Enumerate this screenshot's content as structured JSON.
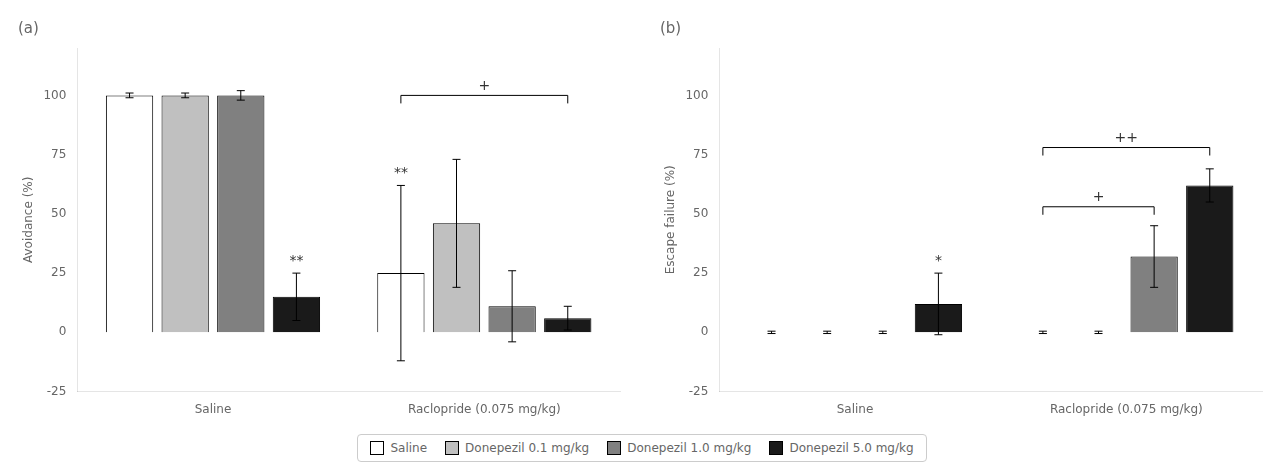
{
  "chart_data": [
    {
      "type": "bar",
      "title": "(a)",
      "y_label": "Avoidance (%)",
      "categories": [
        "Saline",
        "Raclopride (0.075 mg/kg)"
      ],
      "series": [
        {
          "name": "Saline",
          "color": "#ffffff",
          "values": [
            100,
            25
          ],
          "errors": [
            1,
            37
          ]
        },
        {
          "name": "Donepezil 0.1 mg/kg",
          "color": "#c0c0c0",
          "values": [
            100,
            46
          ],
          "errors": [
            1,
            27
          ]
        },
        {
          "name": "Donepezil 1.0 mg/kg",
          "color": "#808080",
          "values": [
            100,
            11
          ],
          "errors": [
            2,
            15
          ]
        },
        {
          "name": "Donepezil 5.0 mg/kg",
          "color": "#1a1a1a",
          "values": [
            15,
            6
          ],
          "errors": [
            10,
            5
          ]
        }
      ],
      "annotations": [
        {
          "text": "**",
          "category": "Saline",
          "series": "Donepezil 5.0 mg/kg",
          "y": 27
        },
        {
          "text": "**",
          "category": "Raclopride (0.075 mg/kg)",
          "series": "Saline",
          "y": 64
        },
        {
          "text": "+",
          "category": "Raclopride (0.075 mg/kg)",
          "from_series": "Saline",
          "to_series": "Donepezil 5.0 mg/kg",
          "y": 100
        }
      ],
      "ylim": [
        -25,
        120
      ],
      "yticks": [
        -25,
        0,
        25,
        50,
        75,
        100
      ],
      "grid": false,
      "legend": "bottom"
    },
    {
      "type": "bar",
      "title": "(b)",
      "y_label": "Escape failure (%)",
      "categories": [
        "Saline",
        "Raclopride (0.075 mg/kg)"
      ],
      "series": [
        {
          "name": "Saline",
          "color": "#ffffff",
          "values": [
            0,
            0
          ],
          "errors": [
            0.5,
            0.5
          ]
        },
        {
          "name": "Donepezil 0.1 mg/kg",
          "color": "#c0c0c0",
          "values": [
            0,
            0
          ],
          "errors": [
            0.5,
            0.5
          ]
        },
        {
          "name": "Donepezil 1.0 mg/kg",
          "color": "#808080",
          "values": [
            0,
            32
          ],
          "errors": [
            0.5,
            13
          ]
        },
        {
          "name": "Donepezil 5.0 mg/kg",
          "color": "#1a1a1a",
          "values": [
            12,
            62
          ],
          "errors": [
            13,
            7
          ]
        }
      ],
      "annotations": [
        {
          "text": "*",
          "category": "Saline",
          "series": "Donepezil 5.0 mg/kg",
          "y": 27
        },
        {
          "text": "+",
          "category": "Raclopride (0.075 mg/kg)",
          "from_series": "Saline",
          "to_series": "Donepezil 1.0 mg/kg",
          "y": 53
        },
        {
          "text": "++",
          "category": "Raclopride (0.075 mg/kg)",
          "from_series": "Saline",
          "to_series": "Donepezil 5.0 mg/kg",
          "y": 78
        }
      ],
      "ylim": [
        -25,
        120
      ],
      "yticks": [
        -25,
        0,
        25,
        50,
        75,
        100
      ],
      "grid": false,
      "legend": "bottom"
    }
  ]
}
